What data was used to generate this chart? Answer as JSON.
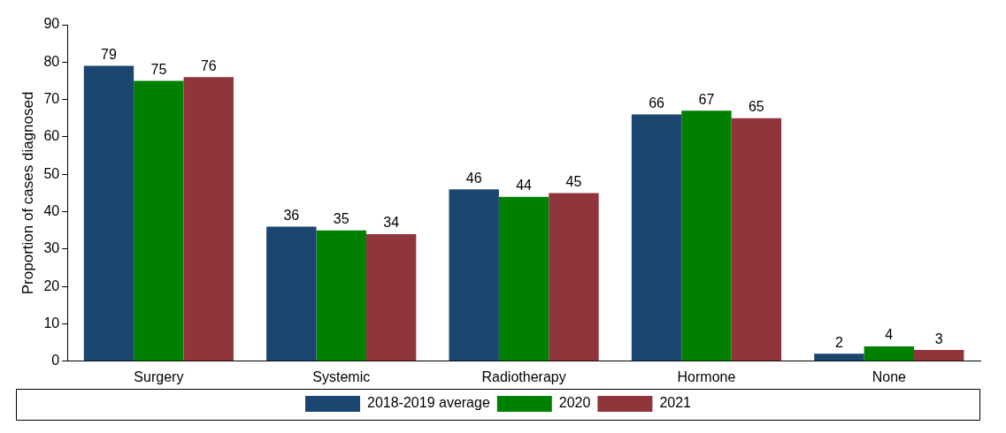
{
  "chart_data": {
    "type": "bar",
    "ylabel": "Proportion of cases diagnosed",
    "categories": [
      "Surgery",
      "Systemic",
      "Radiotherapy",
      "Hormone",
      "None"
    ],
    "series": [
      {
        "name": "2018-2019 average",
        "color": "#1a4670",
        "values": [
          79,
          36,
          46,
          66,
          2
        ]
      },
      {
        "name": "2020",
        "color": "#008000",
        "values": [
          75,
          35,
          44,
          67,
          4
        ]
      },
      {
        "name": "2021",
        "color": "#90353b",
        "values": [
          76,
          34,
          45,
          65,
          3
        ]
      }
    ],
    "ylim": [
      0,
      90
    ],
    "yticks": [
      0,
      10,
      20,
      30,
      40,
      50,
      60,
      70,
      80,
      90
    ],
    "grid": false,
    "legend": "bottom",
    "data_labels": true
  }
}
